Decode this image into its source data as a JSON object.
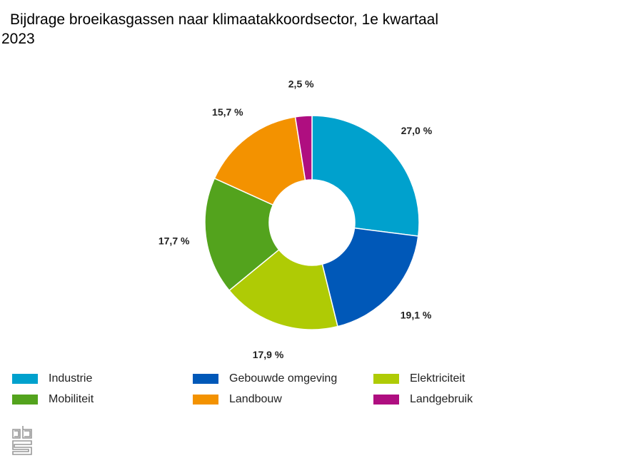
{
  "chart_data": {
    "type": "pie",
    "title": "Bijdrage broeikasgassen naar klimaatakkoordsector, 1e kwartaal 2023",
    "categories": [
      "Industrie",
      "Gebouwde omgeving",
      "Elektriciteit",
      "Mobiliteit",
      "Landbouw",
      "Landgebruik"
    ],
    "values": [
      27.0,
      19.1,
      17.9,
      17.7,
      15.7,
      2.5
    ],
    "data_labels": [
      "27,0 %",
      "19,1 %",
      "17,9 %",
      "17,7 %",
      "15,7 %",
      "2,5 %"
    ],
    "colors": [
      "#00a1cd",
      "#0058b8",
      "#afcb05",
      "#53a31d",
      "#f39200",
      "#af0e80"
    ],
    "donut": true,
    "legend_placement": "bottom"
  },
  "logo": "cbs"
}
